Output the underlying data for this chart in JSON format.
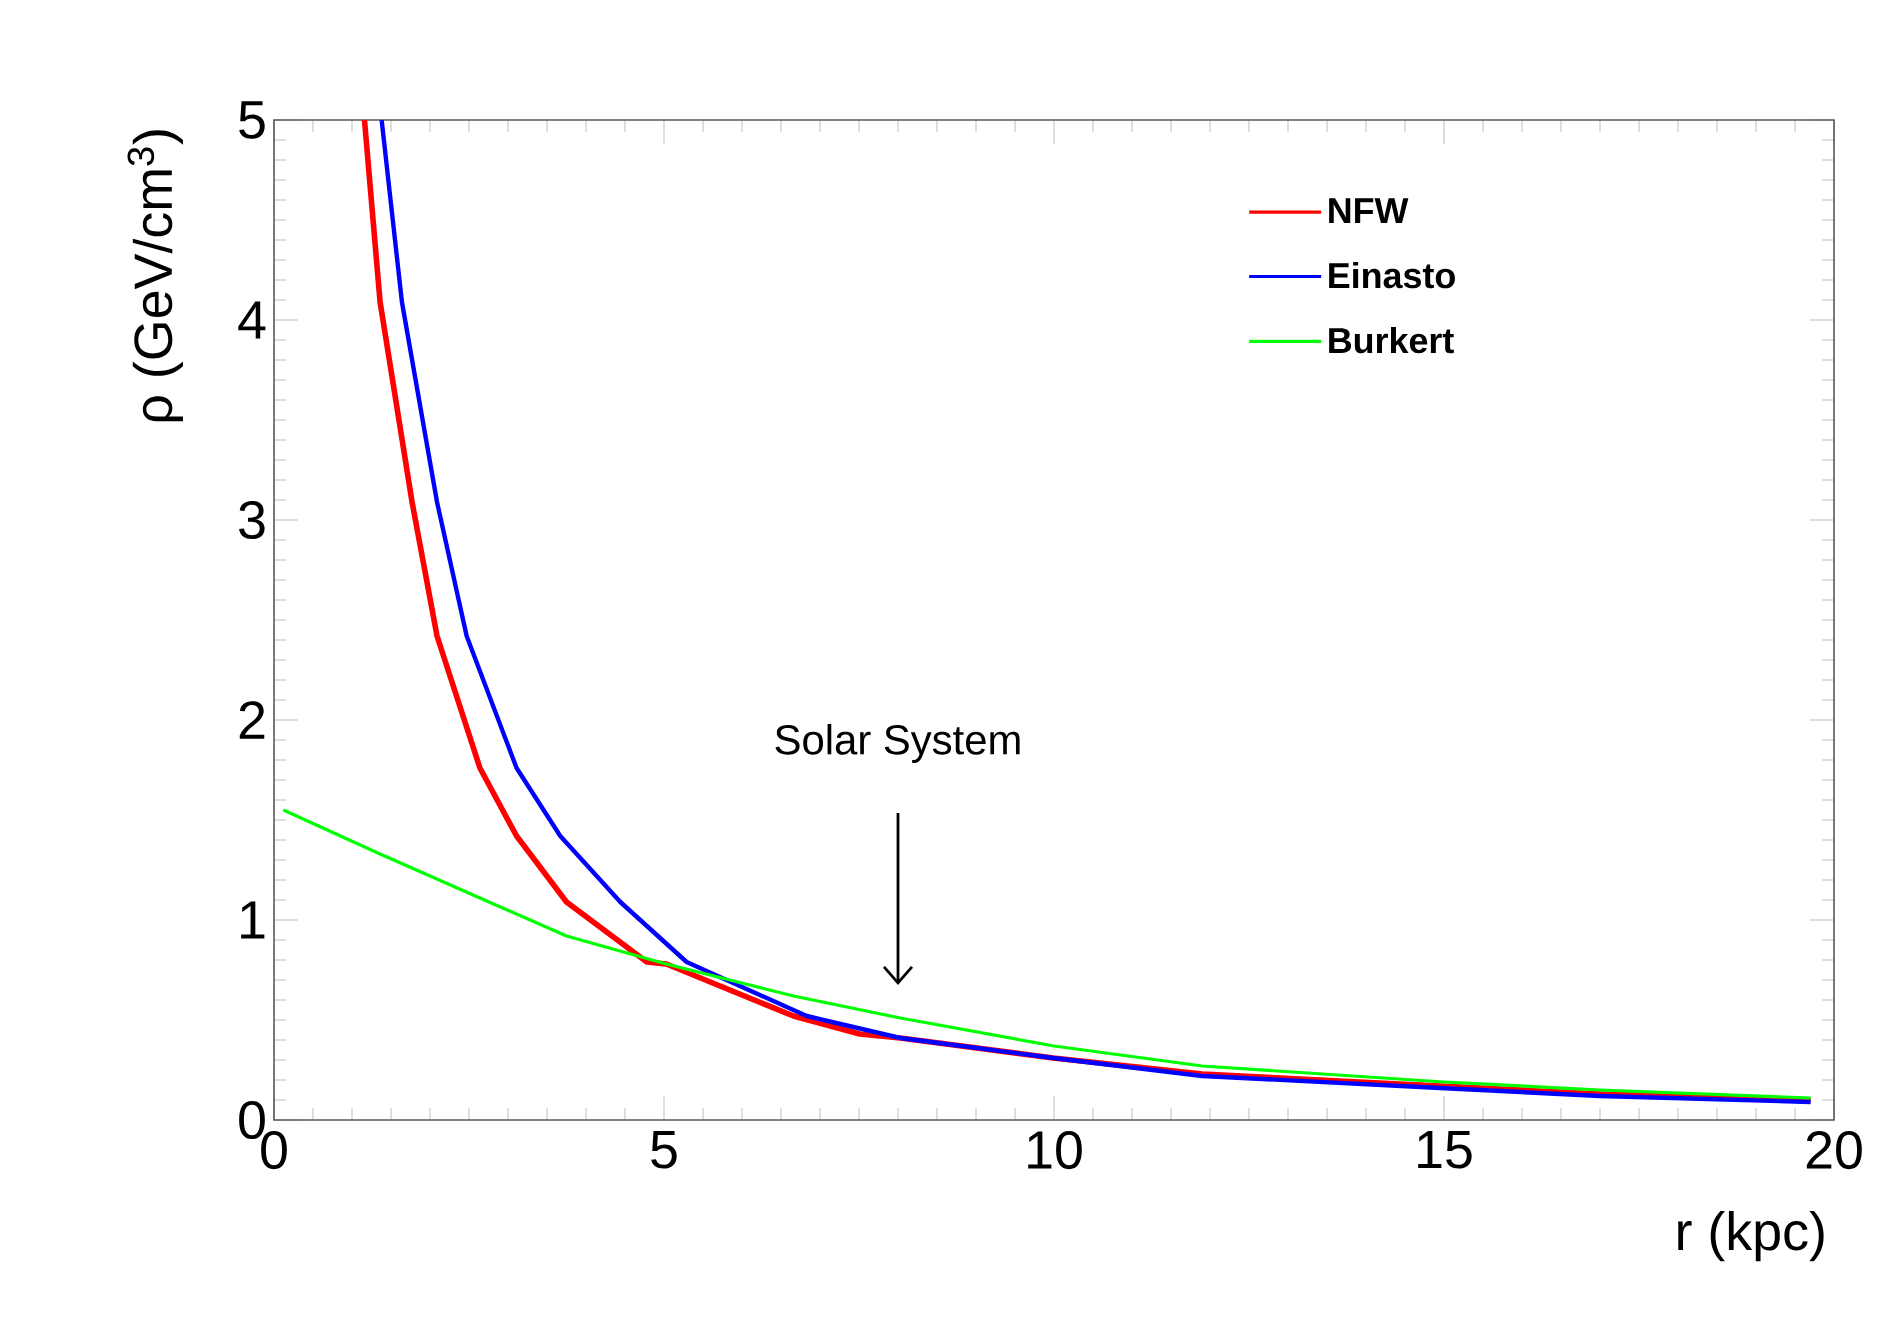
{
  "chart_data": {
    "type": "line",
    "xlabel": "r (kpc)",
    "ylabel": "ρ (GeV/cm$^{3}$)",
    "xlim": [
      0,
      20
    ],
    "ylim": [
      0,
      5
    ],
    "xticks": [
      0,
      5,
      10,
      15,
      20
    ],
    "yticks": [
      0,
      1,
      2,
      3,
      4,
      5
    ],
    "grid": false,
    "legend": "top right",
    "marker": "none",
    "line_style": "solid",
    "series": [
      {
        "name": "NFW",
        "color": "#ff0000",
        "x": [
          1.16,
          1.36,
          1.77,
          2.09,
          2.64,
          3.11,
          3.75,
          4.78,
          5.03,
          6.66,
          7.51,
          8.03,
          9.99,
          11.9,
          14.95,
          17,
          19.7
        ],
        "values": [
          5,
          4.09,
          3.09,
          2.42,
          1.76,
          1.42,
          1.09,
          0.79,
          0.78,
          0.52,
          0.43,
          0.41,
          0.31,
          0.23,
          0.17,
          0.13,
          0.1
        ]
      },
      {
        "name": "Einasto",
        "color": "#0000ff",
        "x": [
          1.38,
          1.64,
          2.09,
          2.47,
          3.11,
          3.67,
          4.44,
          5.29,
          6.83,
          8.03,
          9.99,
          11.9,
          14.95,
          17,
          19.7
        ],
        "values": [
          5,
          4.09,
          3.09,
          2.42,
          1.76,
          1.42,
          1.09,
          0.79,
          0.52,
          0.41,
          0.31,
          0.22,
          0.16,
          0.12,
          0.09
        ]
      },
      {
        "name": "Burkert",
        "color": "#00ff00",
        "x": [
          0.12,
          1.36,
          2.64,
          3.75,
          5.03,
          6.66,
          8.03,
          10,
          11.9,
          15,
          17,
          19.7
        ],
        "values": [
          1.55,
          1.33,
          1.11,
          0.92,
          0.78,
          0.62,
          0.51,
          0.37,
          0.27,
          0.19,
          0.15,
          0.11
        ]
      }
    ],
    "annotations": [
      "Solar System"
    ]
  }
}
